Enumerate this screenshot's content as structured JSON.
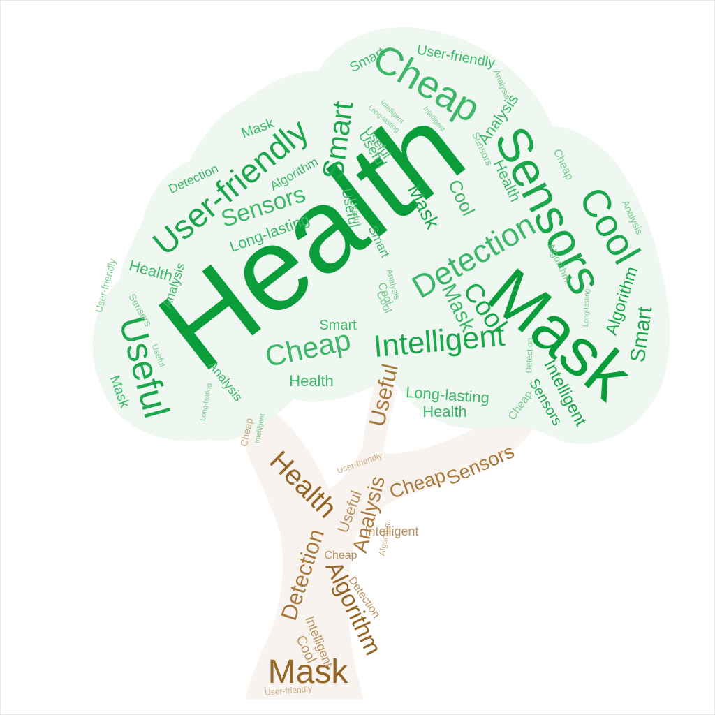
{
  "colors": {
    "foliage_bg": "#eef8f1",
    "trunk_bg": "#f8f3ef",
    "green_dark": "#0a9d3a",
    "green_mid": "#1ca74c",
    "green_light": "#3fb76a",
    "green_pale": "#78c98f",
    "brown_dark": "#946525",
    "brown_mid": "#a7793d",
    "brown_light": "#b89161",
    "brown_pale": "#c9ab84"
  },
  "canopy_words": [
    {
      "text": "Health",
      "weight": 170,
      "tone": "green_dark"
    },
    {
      "text": "Mask",
      "weight": 96,
      "tone": "green_dark"
    },
    {
      "text": "Sensors",
      "weight": 70,
      "tone": "green_mid"
    },
    {
      "text": "Cheap",
      "weight": 56,
      "tone": "green_light"
    },
    {
      "text": "Cool",
      "weight": 56,
      "tone": "green_mid"
    },
    {
      "text": "User-friendly",
      "weight": 48,
      "tone": "green_mid"
    },
    {
      "text": "Detection",
      "weight": 46,
      "tone": "green_light"
    },
    {
      "text": "Intelligent",
      "weight": 44,
      "tone": "green_mid"
    },
    {
      "text": "Useful",
      "weight": 52,
      "tone": "green_mid"
    },
    {
      "text": "Smart",
      "weight": 42,
      "tone": "green_mid"
    },
    {
      "text": "Cheap",
      "weight": 42,
      "tone": "green_light"
    },
    {
      "text": "Sensors",
      "weight": 34,
      "tone": "green_light"
    },
    {
      "text": "Cool",
      "weight": 38,
      "tone": "green_mid"
    },
    {
      "text": "Mask",
      "weight": 30,
      "tone": "green_light"
    },
    {
      "text": "Long-lasting",
      "weight": 22,
      "tone": "green_light"
    },
    {
      "text": "Cool",
      "weight": 26,
      "tone": "green_light"
    },
    {
      "text": "Long-lasting",
      "weight": 22,
      "tone": "green_light"
    },
    {
      "text": "Health",
      "weight": 22,
      "tone": "green_light"
    },
    {
      "text": "Smart",
      "weight": 30,
      "tone": "green_mid"
    },
    {
      "text": "Algorithm",
      "weight": 24,
      "tone": "green_mid"
    },
    {
      "text": "Intelligent",
      "weight": 24,
      "tone": "green_mid"
    },
    {
      "text": "Sensors",
      "weight": 20,
      "tone": "green_mid"
    },
    {
      "text": "Health",
      "weight": 22,
      "tone": "green_light"
    },
    {
      "text": "Health",
      "weight": 22,
      "tone": "green_light"
    },
    {
      "text": "User-friendly",
      "weight": 20,
      "tone": "green_light"
    },
    {
      "text": "Smart",
      "weight": 20,
      "tone": "green_light"
    },
    {
      "text": "Mask",
      "weight": 20,
      "tone": "green_light"
    },
    {
      "text": "Smart",
      "weight": 20,
      "tone": "green_light"
    },
    {
      "text": "Useful",
      "weight": 20,
      "tone": "green_light"
    },
    {
      "text": "Detection",
      "weight": 18,
      "tone": "green_light"
    },
    {
      "text": "Algorithm",
      "weight": 18,
      "tone": "green_light"
    },
    {
      "text": "Analysis",
      "weight": 18,
      "tone": "green_light"
    },
    {
      "text": "Mask",
      "weight": 20,
      "tone": "green_light"
    },
    {
      "text": "Smart",
      "weight": 18,
      "tone": "green_light"
    },
    {
      "text": "Analysis",
      "weight": 18,
      "tone": "green_light"
    },
    {
      "text": "Health",
      "weight": 22,
      "tone": "green_light"
    },
    {
      "text": "Mask",
      "weight": 28,
      "tone": "green_mid"
    },
    {
      "text": "Analysis",
      "weight": 22,
      "tone": "green_light"
    },
    {
      "text": "Useful",
      "weight": 20,
      "tone": "green_light"
    },
    {
      "text": "Useful",
      "weight": 18,
      "tone": "green_light"
    },
    {
      "text": "Cheap",
      "weight": 16,
      "tone": "green_pale"
    },
    {
      "text": "Cool",
      "weight": 16,
      "tone": "green_pale"
    },
    {
      "text": "Algorithm",
      "weight": 14,
      "tone": "green_pale"
    },
    {
      "text": "Analysis",
      "weight": 14,
      "tone": "green_pale"
    },
    {
      "text": "Analysis",
      "weight": 12,
      "tone": "green_pale"
    },
    {
      "text": "Sensors",
      "weight": 14,
      "tone": "green_pale"
    },
    {
      "text": "User-friendly",
      "weight": 14,
      "tone": "green_pale"
    },
    {
      "text": "Sensors",
      "weight": 14,
      "tone": "green_pale"
    },
    {
      "text": "Useful",
      "weight": 12,
      "tone": "green_pale"
    },
    {
      "text": "Detection",
      "weight": 12,
      "tone": "green_pale"
    },
    {
      "text": "Intelligent",
      "weight": 10,
      "tone": "green_pale"
    },
    {
      "text": "Intelligent",
      "weight": 10,
      "tone": "green_pale"
    },
    {
      "text": "Long-lasting",
      "weight": 10,
      "tone": "green_pale"
    },
    {
      "text": "Long-lasting",
      "weight": 10,
      "tone": "green_pale"
    },
    {
      "text": "Analysis",
      "weight": 12,
      "tone": "green_pale"
    },
    {
      "text": "Useful",
      "weight": 14,
      "tone": "green_pale"
    },
    {
      "text": "Cool",
      "weight": 16,
      "tone": "green_pale"
    },
    {
      "text": "Intelligent",
      "weight": 10,
      "tone": "green_pale"
    },
    {
      "text": "Long-lasting",
      "weight": 10,
      "tone": "green_pale"
    },
    {
      "text": "Cheap",
      "weight": 16,
      "tone": "green_pale"
    }
  ],
  "trunk_words": [
    {
      "text": "Health",
      "weight": 40,
      "tone": "brown_dark"
    },
    {
      "text": "Useful",
      "weight": 32,
      "tone": "brown_mid"
    },
    {
      "text": "Cheap",
      "weight": 28,
      "tone": "brown_mid"
    },
    {
      "text": "Sensors",
      "weight": 28,
      "tone": "brown_mid"
    },
    {
      "text": "Analysis",
      "weight": 30,
      "tone": "brown_mid"
    },
    {
      "text": "Useful",
      "weight": 22,
      "tone": "brown_light"
    },
    {
      "text": "Detection",
      "weight": 32,
      "tone": "brown_mid"
    },
    {
      "text": "Algorithm",
      "weight": 34,
      "tone": "brown_dark"
    },
    {
      "text": "Mask",
      "weight": 48,
      "tone": "brown_dark"
    },
    {
      "text": "Intelligent",
      "weight": 18,
      "tone": "brown_light"
    },
    {
      "text": "Cool",
      "weight": 20,
      "tone": "brown_light"
    },
    {
      "text": "Intelligent",
      "weight": 18,
      "tone": "brown_light"
    },
    {
      "text": "Cheap",
      "weight": 16,
      "tone": "brown_light"
    },
    {
      "text": "Detection",
      "weight": 16,
      "tone": "brown_light"
    },
    {
      "text": "Algorithm",
      "weight": 12,
      "tone": "brown_pale"
    },
    {
      "text": "User-friendly",
      "weight": 12,
      "tone": "brown_pale"
    },
    {
      "text": "User-friendly",
      "weight": 12,
      "tone": "brown_pale"
    },
    {
      "text": "Cheap",
      "weight": 14,
      "tone": "brown_pale"
    }
  ]
}
